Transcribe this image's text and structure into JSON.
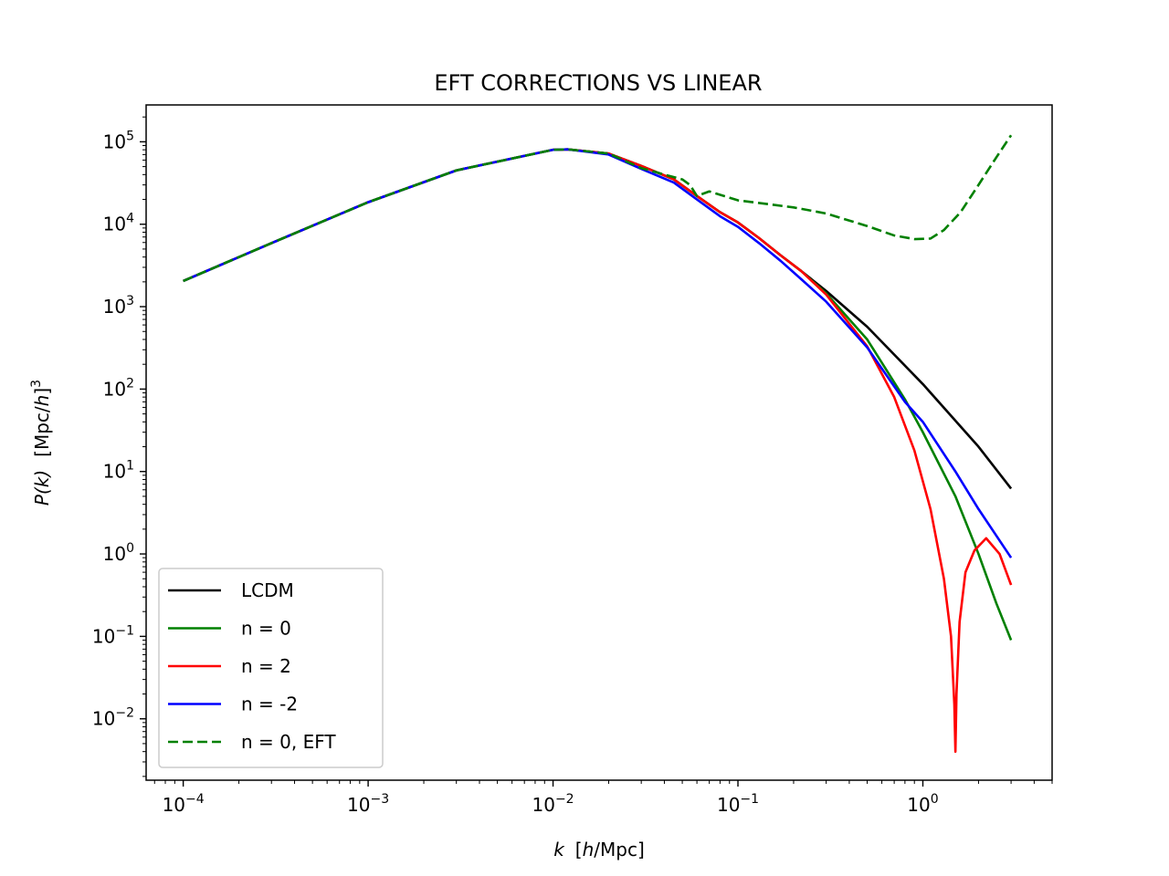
{
  "chart_data": {
    "type": "line",
    "title": "EFT CORRECTIONS VS LINEAR",
    "xlabel": {
      "var": "k",
      "units_pre": "[",
      "units_h": "h",
      "units_post": "/Mpc]"
    },
    "ylabel": {
      "var": "P(k)",
      "units_pre": "[Mpc/",
      "units_h": "h",
      "units_post": "]",
      "units_exp": "3"
    },
    "xscale": "log",
    "yscale": "log",
    "xlim": [
      6.3e-05,
      5.0
    ],
    "ylim": [
      0.0018,
      280000
    ],
    "xticks": [
      {
        "value": 0.0001,
        "base": "10",
        "exp": "−4"
      },
      {
        "value": 0.001,
        "base": "10",
        "exp": "−3"
      },
      {
        "value": 0.01,
        "base": "10",
        "exp": "−2"
      },
      {
        "value": 0.1,
        "base": "10",
        "exp": "−1"
      },
      {
        "value": 1,
        "base": "10",
        "exp": "0"
      }
    ],
    "yticks": [
      {
        "value": 0.01,
        "base": "10",
        "exp": "−2"
      },
      {
        "value": 0.1,
        "base": "10",
        "exp": "−1"
      },
      {
        "value": 1,
        "base": "10",
        "exp": "0"
      },
      {
        "value": 10,
        "base": "10",
        "exp": "1"
      },
      {
        "value": 100,
        "base": "10",
        "exp": "2"
      },
      {
        "value": 1000,
        "base": "10",
        "exp": "3"
      },
      {
        "value": 10000,
        "base": "10",
        "exp": "4"
      },
      {
        "value": 100000,
        "base": "10",
        "exp": "5"
      }
    ],
    "grid": false,
    "legend_position": "lower-left",
    "series": [
      {
        "name": "LCDM",
        "color": "#000000",
        "dash": "solid",
        "x": [
          0.0001,
          0.0003,
          0.001,
          0.003,
          0.01,
          0.012,
          0.02,
          0.03,
          0.045,
          0.06,
          0.08,
          0.1,
          0.13,
          0.17,
          0.22,
          0.3,
          0.5,
          1,
          2,
          3
        ],
        "y": [
          2050,
          5900,
          18500,
          45000,
          80000,
          81000,
          72000,
          51000,
          35000,
          22000,
          14000,
          10500,
          6800,
          4200,
          2700,
          1550,
          570,
          115,
          20,
          6.2
        ]
      },
      {
        "name": "n = 0",
        "color": "#008000",
        "dash": "solid",
        "x": [
          0.0001,
          0.0003,
          0.001,
          0.003,
          0.01,
          0.012,
          0.02,
          0.03,
          0.045,
          0.06,
          0.08,
          0.1,
          0.13,
          0.17,
          0.22,
          0.3,
          0.5,
          0.8,
          1,
          1.5,
          2,
          2.5,
          3
        ],
        "y": [
          2050,
          5900,
          18500,
          45000,
          80000,
          81000,
          72000,
          51000,
          35000,
          22000,
          14000,
          10500,
          6800,
          4200,
          2700,
          1450,
          400,
          75,
          30,
          5,
          1.0,
          0.25,
          0.09
        ]
      },
      {
        "name": "n = 2",
        "color": "#ff0000",
        "dash": "solid",
        "x": [
          0.0001,
          0.0003,
          0.001,
          0.003,
          0.01,
          0.012,
          0.02,
          0.03,
          0.045,
          0.06,
          0.08,
          0.1,
          0.13,
          0.17,
          0.22,
          0.3,
          0.5,
          0.7,
          0.9,
          1.1,
          1.3,
          1.42,
          1.48,
          1.5,
          1.52,
          1.58,
          1.7,
          1.9,
          2.2,
          2.6,
          3
        ],
        "y": [
          2050,
          5900,
          18500,
          45000,
          80000,
          81000,
          72000,
          51000,
          35000,
          22000,
          14000,
          10500,
          6800,
          4200,
          2700,
          1400,
          330,
          80,
          18,
          3.5,
          0.5,
          0.1,
          0.015,
          0.004,
          0.02,
          0.15,
          0.6,
          1.1,
          1.55,
          1.0,
          0.42
        ]
      },
      {
        "name": "n = -2",
        "color": "#0000ff",
        "dash": "solid",
        "x": [
          0.0001,
          0.0003,
          0.001,
          0.003,
          0.01,
          0.012,
          0.02,
          0.03,
          0.045,
          0.06,
          0.08,
          0.1,
          0.13,
          0.17,
          0.22,
          0.3,
          0.5,
          0.8,
          1,
          1.5,
          2,
          3
        ],
        "y": [
          2050,
          5900,
          18500,
          45000,
          80000,
          81000,
          70000,
          47000,
          32000,
          20000,
          12500,
          9300,
          5900,
          3600,
          2150,
          1150,
          320,
          70,
          40,
          10,
          3.5,
          0.9
        ]
      },
      {
        "name": "n = 0, EFT",
        "color": "#008000",
        "dash": "dashed",
        "x": [
          0.0001,
          0.0003,
          0.001,
          0.003,
          0.01,
          0.012,
          0.02,
          0.03,
          0.04,
          0.05,
          0.055,
          0.06,
          0.07,
          0.1,
          0.2,
          0.3,
          0.5,
          0.7,
          0.9,
          1.1,
          1.3,
          1.6,
          2,
          2.5,
          3
        ],
        "y": [
          2050,
          5900,
          18500,
          45000,
          80000,
          81000,
          72000,
          48000,
          40000,
          35000,
          30000,
          22000,
          25000,
          19500,
          16000,
          13500,
          9500,
          7300,
          6600,
          6700,
          8500,
          14000,
          30000,
          65000,
          120000
        ]
      }
    ]
  }
}
